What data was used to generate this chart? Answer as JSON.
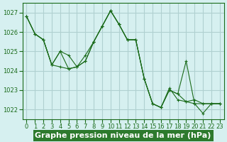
{
  "xlabel": "Graphe pression niveau de la mer (hPa)",
  "ylabel": "",
  "bg_color": "#d6f0f0",
  "grid_color": "#b0d0d0",
  "line_color": "#1a6b1a",
  "marker_color": "#1a6b1a",
  "ylim": [
    1021.5,
    1027.5
  ],
  "xlim": [
    -0.5,
    23.5
  ],
  "yticks": [
    1022,
    1023,
    1024,
    1025,
    1026,
    1027
  ],
  "xticks": [
    0,
    1,
    2,
    3,
    4,
    5,
    6,
    7,
    8,
    9,
    10,
    11,
    12,
    13,
    14,
    15,
    16,
    17,
    18,
    19,
    20,
    21,
    22,
    23
  ],
  "series": [
    [
      1026.8,
      1025.9,
      1025.6,
      1024.3,
      1025.0,
      1024.8,
      1024.2,
      1024.8,
      1025.5,
      1026.3,
      1027.1,
      1026.4,
      1025.6,
      1025.6,
      1023.6,
      1022.3,
      1022.1,
      1023.1,
      1022.5,
      1022.4,
      1022.5,
      1022.3,
      1022.3,
      1022.3
    ],
    [
      1026.8,
      1025.9,
      1025.6,
      1024.3,
      1024.2,
      1024.1,
      1024.2,
      1024.5,
      1025.5,
      1026.3,
      1027.1,
      1026.4,
      1025.6,
      1025.6,
      1023.6,
      1022.3,
      1022.1,
      1023.0,
      1022.8,
      1022.4,
      1022.3,
      1022.3,
      1022.3,
      1022.3
    ],
    [
      1026.8,
      1025.9,
      1025.6,
      1024.3,
      1025.0,
      1024.1,
      1024.2,
      1024.5,
      1025.5,
      1026.3,
      1027.1,
      1026.4,
      1025.6,
      1025.6,
      1023.6,
      1022.3,
      1022.1,
      1023.0,
      1022.8,
      1024.5,
      1022.3,
      1021.8,
      1022.3,
      1022.3
    ]
  ],
  "title_bg": "#2d7a2d",
  "title_fg": "#ffffff",
  "title_fontsize": 7.5,
  "xlabel_fontsize": 8,
  "tick_fontsize": 6
}
